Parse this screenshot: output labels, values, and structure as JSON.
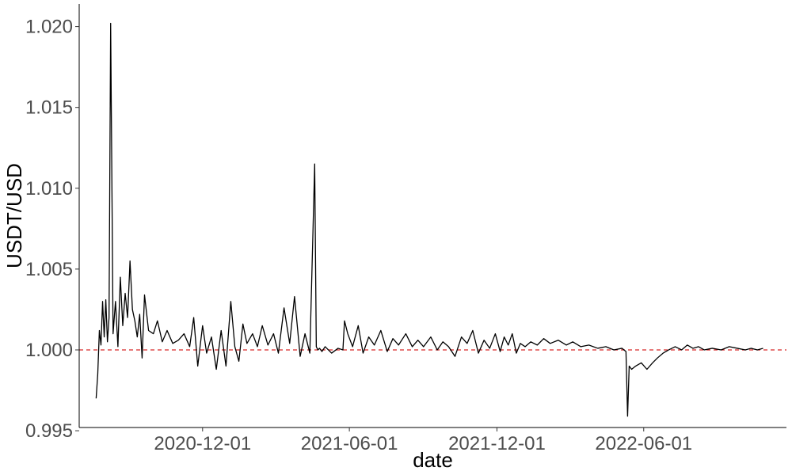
{
  "chart_data": {
    "type": "line",
    "title": "",
    "xlabel": "date",
    "ylabel": "USDT/USD",
    "xlim": [
      "2020-07-01",
      "2022-11-25"
    ],
    "ylim": [
      0.9952,
      1.0214
    ],
    "x_ticks": [
      "2020-12-01",
      "2021-06-01",
      "2021-12-01",
      "2022-06-01"
    ],
    "y_ticks": [
      0.995,
      1.0,
      1.005,
      1.01,
      1.015,
      1.02
    ],
    "y_tick_labels": [
      "0.995",
      "1.000",
      "1.005",
      "1.010",
      "1.015",
      "1.020"
    ],
    "grid": false,
    "reference_line": {
      "y": 1.0,
      "style": "dashed",
      "color": "#d62728"
    },
    "line_color": "#000000",
    "series": [
      {
        "x": [
          "2020-07-22",
          "2020-07-24",
          "2020-07-26",
          "2020-07-28",
          "2020-07-30",
          "2020-08-01",
          "2020-08-03",
          "2020-08-05",
          "2020-08-07",
          "2020-08-09",
          "2020-08-12",
          "2020-08-15",
          "2020-08-18",
          "2020-08-21",
          "2020-08-24",
          "2020-08-27",
          "2020-08-30",
          "2020-09-02",
          "2020-09-05",
          "2020-09-08",
          "2020-09-11",
          "2020-09-14",
          "2020-09-17",
          "2020-09-20",
          "2020-09-25",
          "2020-10-01",
          "2020-10-06",
          "2020-10-12",
          "2020-10-18",
          "2020-10-25",
          "2020-11-01",
          "2020-11-08",
          "2020-11-15",
          "2020-11-20",
          "2020-11-25",
          "2020-12-01",
          "2020-12-06",
          "2020-12-12",
          "2020-12-18",
          "2020-12-24",
          "2020-12-30",
          "2021-01-05",
          "2021-01-10",
          "2021-01-15",
          "2021-01-20",
          "2021-01-25",
          "2021-02-01",
          "2021-02-07",
          "2021-02-13",
          "2021-02-20",
          "2021-02-27",
          "2021-03-05",
          "2021-03-12",
          "2021-03-19",
          "2021-03-25",
          "2021-04-01",
          "2021-04-07",
          "2021-04-13",
          "2021-04-19",
          "2021-04-21",
          "2021-04-23",
          "2021-04-25",
          "2021-04-28",
          "2021-05-02",
          "2021-05-10",
          "2021-05-18",
          "2021-05-24",
          "2021-05-26",
          "2021-05-30",
          "2021-06-05",
          "2021-06-12",
          "2021-06-18",
          "2021-06-25",
          "2021-07-02",
          "2021-07-10",
          "2021-07-18",
          "2021-07-25",
          "2021-08-01",
          "2021-08-10",
          "2021-08-18",
          "2021-08-25",
          "2021-09-01",
          "2021-09-10",
          "2021-09-18",
          "2021-09-25",
          "2021-10-02",
          "2021-10-10",
          "2021-10-18",
          "2021-10-25",
          "2021-11-01",
          "2021-11-08",
          "2021-11-15",
          "2021-11-22",
          "2021-11-29",
          "2021-12-05",
          "2021-12-10",
          "2021-12-15",
          "2021-12-20",
          "2021-12-25",
          "2021-12-30",
          "2022-01-05",
          "2022-01-12",
          "2022-01-20",
          "2022-01-28",
          "2022-02-05",
          "2022-02-15",
          "2022-02-25",
          "2022-03-05",
          "2022-03-15",
          "2022-03-25",
          "2022-04-05",
          "2022-04-15",
          "2022-04-25",
          "2022-05-05",
          "2022-05-10",
          "2022-05-12",
          "2022-05-14",
          "2022-05-17",
          "2022-05-22",
          "2022-05-29",
          "2022-06-05",
          "2022-06-12",
          "2022-06-18",
          "2022-06-25",
          "2022-07-02",
          "2022-07-10",
          "2022-07-18",
          "2022-07-25",
          "2022-08-01",
          "2022-08-08",
          "2022-08-15",
          "2022-08-25",
          "2022-09-05",
          "2022-09-15",
          "2022-09-25",
          "2022-10-05",
          "2022-10-12",
          "2022-10-20",
          "2022-10-27"
        ],
        "values": [
          0.997,
          0.9985,
          1.0012,
          1.0003,
          1.003,
          1.0008,
          1.0031,
          1.0005,
          1.002,
          1.0202,
          1.001,
          1.003,
          1.0002,
          1.0045,
          1.0015,
          1.0035,
          1.002,
          1.0055,
          1.0025,
          1.0018,
          1.0008,
          1.0022,
          0.9995,
          1.0034,
          1.0012,
          1.001,
          1.0018,
          1.0005,
          1.0012,
          1.0004,
          1.0006,
          1.001,
          1.0002,
          1.002,
          0.999,
          1.0015,
          0.9998,
          1.0008,
          0.9988,
          1.0012,
          0.999,
          1.003,
          1.0002,
          0.9993,
          1.0016,
          1.0004,
          1.001,
          1.0002,
          1.0015,
          1.0003,
          1.001,
          0.9998,
          1.0026,
          1.0004,
          1.0033,
          0.9996,
          1.001,
          0.9998,
          1.0115,
          1.0002,
          1.0,
          1.0001,
          0.9999,
          1.0002,
          0.9998,
          1.0001,
          1.0,
          1.0018,
          1.001,
          1.0002,
          1.0015,
          0.9998,
          1.0008,
          1.0003,
          1.0012,
          0.9999,
          1.0007,
          1.0003,
          1.001,
          1.0002,
          1.0006,
          1.0002,
          1.0008,
          1.0,
          1.0005,
          1.0002,
          0.9996,
          1.0008,
          1.0004,
          1.0012,
          0.9998,
          1.0006,
          1.0001,
          1.001,
          0.9999,
          1.0008,
          1.0003,
          1.001,
          0.9998,
          1.0004,
          1.0002,
          1.0005,
          1.0003,
          1.0007,
          1.0004,
          1.0006,
          1.0003,
          1.0005,
          1.0002,
          1.0003,
          1.0001,
          1.0002,
          1.0,
          1.0001,
          0.9999,
          0.9959,
          0.999,
          0.9988,
          0.999,
          0.9992,
          0.9988,
          0.9992,
          0.9995,
          0.9998,
          1.0,
          1.0002,
          1.0,
          1.0003,
          1.0001,
          1.0002,
          1.0,
          1.0001,
          1.0,
          1.0002,
          1.0001,
          1.0,
          1.0001,
          1.0,
          1.0001
        ]
      }
    ]
  }
}
